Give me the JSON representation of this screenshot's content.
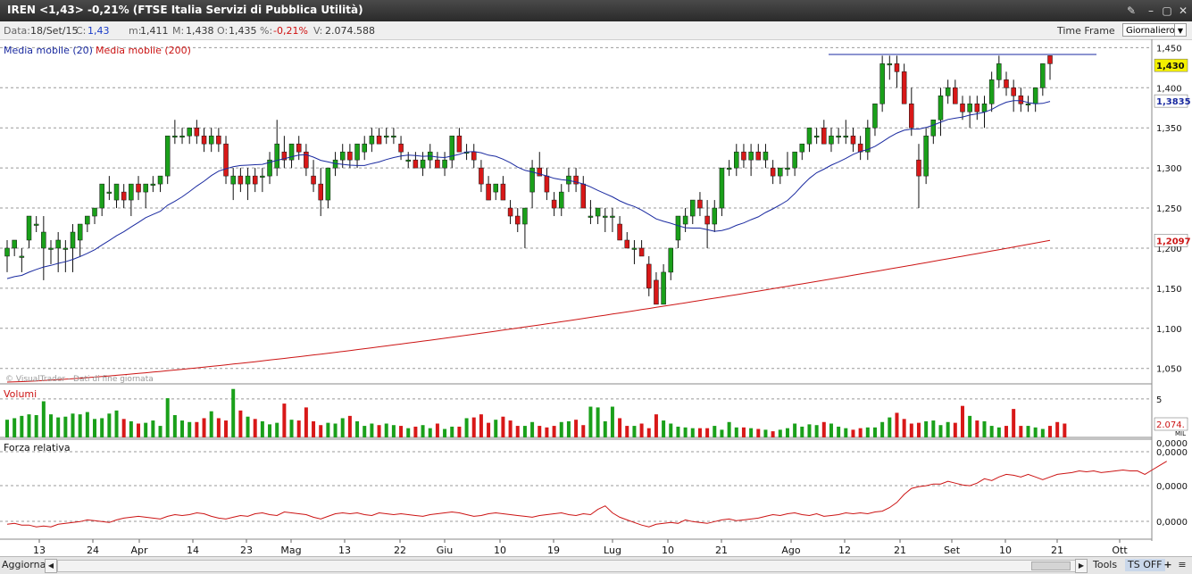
{
  "window": {
    "title": "IREN <1,43> -0,21%  (FTSE Italia Servizi di Pubblica Utilità)",
    "controls": [
      "✎",
      "–",
      "▢",
      "✕"
    ]
  },
  "infobar": {
    "data_label": "Data:",
    "date": "18/Set/15",
    "c_label": "C:",
    "c_value": "1,43",
    "m_label": "m:",
    "m_value": "1,411",
    "M_label": "M:",
    "M_value": "1,438",
    "o_label": "O:",
    "o_value": "1,435",
    "pct_label": "%:",
    "pct_value": "-0,21%",
    "v_label": "V:",
    "v_value": "2.074.588",
    "timeframe_label": "Time Frame",
    "timeframe_value": "Giornaliero"
  },
  "colors": {
    "up": "#1aa01a",
    "down": "#d81818",
    "ma20": "#1a2aa0",
    "ma200": "#cc1414",
    "rsi": "#cc1414",
    "grid": "#999999"
  },
  "chart_data": {
    "type": "candlestick",
    "legend": [
      "Media mobile (20)",
      "Media mobile (200)"
    ],
    "watermark": "© VisualTrader - Dati di fine giornata",
    "price_axis": {
      "ticks": [
        "1,450",
        "1,400",
        "1,350",
        "1,300",
        "1,250",
        "1,200",
        "1,150",
        "1,100",
        "1,050"
      ],
      "ylim": [
        1.033,
        1.456
      ]
    },
    "markers": {
      "last": "1,430",
      "ma20": "1,3835",
      "ma200": "1,2097"
    },
    "x_labels": [
      "13",
      "24",
      "Apr",
      "14",
      "23",
      "Mag",
      "13",
      "22",
      "Giu",
      "10",
      "19",
      "Lug",
      "10",
      "21",
      "Ago",
      "12",
      "21",
      "Set",
      "10",
      "21",
      "Ott"
    ],
    "candles": [
      [
        1.19,
        1.21,
        1.17,
        1.2
      ],
      [
        1.2,
        1.21,
        1.19,
        1.21
      ],
      [
        1.19,
        1.2,
        1.17,
        1.19
      ],
      [
        1.21,
        1.24,
        1.2,
        1.24
      ],
      [
        1.23,
        1.24,
        1.22,
        1.23
      ],
      [
        1.2,
        1.24,
        1.16,
        1.22
      ],
      [
        1.2,
        1.21,
        1.18,
        1.2
      ],
      [
        1.2,
        1.22,
        1.17,
        1.21
      ],
      [
        1.2,
        1.21,
        1.17,
        1.2
      ],
      [
        1.2,
        1.23,
        1.17,
        1.22
      ],
      [
        1.21,
        1.23,
        1.19,
        1.23
      ],
      [
        1.23,
        1.24,
        1.22,
        1.24
      ],
      [
        1.24,
        1.25,
        1.23,
        1.25
      ],
      [
        1.25,
        1.28,
        1.24,
        1.28
      ],
      [
        1.27,
        1.29,
        1.26,
        1.27
      ],
      [
        1.26,
        1.28,
        1.25,
        1.28
      ],
      [
        1.27,
        1.28,
        1.25,
        1.26
      ],
      [
        1.26,
        1.28,
        1.24,
        1.28
      ],
      [
        1.28,
        1.29,
        1.26,
        1.27
      ],
      [
        1.27,
        1.28,
        1.25,
        1.28
      ],
      [
        1.28,
        1.29,
        1.27,
        1.28
      ],
      [
        1.28,
        1.29,
        1.27,
        1.29
      ],
      [
        1.29,
        1.34,
        1.28,
        1.34
      ],
      [
        1.34,
        1.36,
        1.33,
        1.34
      ],
      [
        1.34,
        1.35,
        1.33,
        1.34
      ],
      [
        1.34,
        1.35,
        1.33,
        1.35
      ],
      [
        1.35,
        1.36,
        1.33,
        1.34
      ],
      [
        1.34,
        1.35,
        1.32,
        1.33
      ],
      [
        1.33,
        1.35,
        1.32,
        1.34
      ],
      [
        1.34,
        1.35,
        1.32,
        1.33
      ],
      [
        1.33,
        1.34,
        1.28,
        1.29
      ],
      [
        1.28,
        1.3,
        1.26,
        1.29
      ],
      [
        1.29,
        1.3,
        1.27,
        1.28
      ],
      [
        1.28,
        1.3,
        1.26,
        1.29
      ],
      [
        1.29,
        1.3,
        1.27,
        1.28
      ],
      [
        1.29,
        1.3,
        1.27,
        1.29
      ],
      [
        1.29,
        1.32,
        1.28,
        1.31
      ],
      [
        1.3,
        1.36,
        1.29,
        1.33
      ],
      [
        1.32,
        1.34,
        1.3,
        1.31
      ],
      [
        1.31,
        1.33,
        1.3,
        1.33
      ],
      [
        1.33,
        1.34,
        1.31,
        1.32
      ],
      [
        1.32,
        1.33,
        1.29,
        1.3
      ],
      [
        1.29,
        1.31,
        1.27,
        1.28
      ],
      [
        1.28,
        1.3,
        1.24,
        1.26
      ],
      [
        1.26,
        1.3,
        1.25,
        1.3
      ],
      [
        1.3,
        1.32,
        1.29,
        1.31
      ],
      [
        1.31,
        1.33,
        1.3,
        1.32
      ],
      [
        1.32,
        1.33,
        1.3,
        1.31
      ],
      [
        1.31,
        1.33,
        1.3,
        1.33
      ],
      [
        1.32,
        1.34,
        1.31,
        1.33
      ],
      [
        1.33,
        1.35,
        1.32,
        1.34
      ],
      [
        1.34,
        1.35,
        1.33,
        1.33
      ],
      [
        1.34,
        1.35,
        1.33,
        1.34
      ],
      [
        1.34,
        1.35,
        1.33,
        1.34
      ],
      [
        1.33,
        1.34,
        1.31,
        1.32
      ],
      [
        1.31,
        1.32,
        1.3,
        1.31
      ],
      [
        1.31,
        1.32,
        1.3,
        1.3
      ],
      [
        1.3,
        1.32,
        1.29,
        1.31
      ],
      [
        1.31,
        1.33,
        1.3,
        1.32
      ],
      [
        1.31,
        1.32,
        1.3,
        1.3
      ],
      [
        1.3,
        1.32,
        1.29,
        1.31
      ],
      [
        1.31,
        1.34,
        1.3,
        1.34
      ],
      [
        1.34,
        1.35,
        1.32,
        1.32
      ],
      [
        1.32,
        1.33,
        1.31,
        1.32
      ],
      [
        1.32,
        1.33,
        1.3,
        1.31
      ],
      [
        1.3,
        1.31,
        1.27,
        1.28
      ],
      [
        1.28,
        1.29,
        1.26,
        1.26
      ],
      [
        1.27,
        1.28,
        1.26,
        1.28
      ],
      [
        1.28,
        1.29,
        1.26,
        1.26
      ],
      [
        1.25,
        1.26,
        1.23,
        1.24
      ],
      [
        1.24,
        1.25,
        1.22,
        1.23
      ],
      [
        1.23,
        1.25,
        1.2,
        1.25
      ],
      [
        1.27,
        1.31,
        1.25,
        1.3
      ],
      [
        1.3,
        1.32,
        1.29,
        1.29
      ],
      [
        1.29,
        1.3,
        1.26,
        1.27
      ],
      [
        1.26,
        1.27,
        1.24,
        1.25
      ],
      [
        1.25,
        1.28,
        1.24,
        1.27
      ],
      [
        1.28,
        1.3,
        1.27,
        1.29
      ],
      [
        1.29,
        1.3,
        1.27,
        1.28
      ],
      [
        1.28,
        1.29,
        1.25,
        1.25
      ],
      [
        1.24,
        1.26,
        1.23,
        1.24
      ],
      [
        1.24,
        1.25,
        1.23,
        1.25
      ],
      [
        1.24,
        1.25,
        1.22,
        1.24
      ],
      [
        1.24,
        1.25,
        1.22,
        1.24
      ],
      [
        1.23,
        1.24,
        1.21,
        1.21
      ],
      [
        1.21,
        1.22,
        1.2,
        1.2
      ],
      [
        1.2,
        1.21,
        1.18,
        1.2
      ],
      [
        1.2,
        1.21,
        1.19,
        1.19
      ],
      [
        1.18,
        1.19,
        1.14,
        1.15
      ],
      [
        1.16,
        1.17,
        1.13,
        1.13
      ],
      [
        1.13,
        1.18,
        1.13,
        1.17
      ],
      [
        1.17,
        1.2,
        1.16,
        1.2
      ],
      [
        1.21,
        1.24,
        1.2,
        1.24
      ],
      [
        1.23,
        1.25,
        1.22,
        1.24
      ],
      [
        1.24,
        1.26,
        1.23,
        1.26
      ],
      [
        1.26,
        1.27,
        1.24,
        1.25
      ],
      [
        1.24,
        1.26,
        1.2,
        1.23
      ],
      [
        1.23,
        1.26,
        1.22,
        1.25
      ],
      [
        1.25,
        1.3,
        1.24,
        1.3
      ],
      [
        1.3,
        1.31,
        1.29,
        1.3
      ],
      [
        1.3,
        1.33,
        1.29,
        1.32
      ],
      [
        1.32,
        1.33,
        1.3,
        1.31
      ],
      [
        1.31,
        1.33,
        1.29,
        1.32
      ],
      [
        1.32,
        1.33,
        1.31,
        1.31
      ],
      [
        1.31,
        1.33,
        1.3,
        1.32
      ],
      [
        1.3,
        1.31,
        1.28,
        1.29
      ],
      [
        1.29,
        1.3,
        1.28,
        1.3
      ],
      [
        1.3,
        1.32,
        1.29,
        1.3
      ],
      [
        1.3,
        1.32,
        1.29,
        1.32
      ],
      [
        1.32,
        1.33,
        1.31,
        1.33
      ],
      [
        1.33,
        1.35,
        1.32,
        1.35
      ],
      [
        1.34,
        1.35,
        1.33,
        1.34
      ],
      [
        1.35,
        1.36,
        1.33,
        1.33
      ],
      [
        1.33,
        1.35,
        1.32,
        1.34
      ],
      [
        1.34,
        1.35,
        1.33,
        1.34
      ],
      [
        1.34,
        1.36,
        1.33,
        1.34
      ],
      [
        1.34,
        1.35,
        1.32,
        1.33
      ],
      [
        1.33,
        1.34,
        1.31,
        1.32
      ],
      [
        1.32,
        1.36,
        1.31,
        1.35
      ],
      [
        1.35,
        1.38,
        1.34,
        1.38
      ],
      [
        1.38,
        1.44,
        1.37,
        1.43
      ],
      [
        1.43,
        1.44,
        1.41,
        1.43
      ],
      [
        1.43,
        1.44,
        1.4,
        1.42
      ],
      [
        1.42,
        1.43,
        1.38,
        1.38
      ],
      [
        1.38,
        1.4,
        1.34,
        1.35
      ],
      [
        1.31,
        1.33,
        1.25,
        1.29
      ],
      [
        1.29,
        1.35,
        1.28,
        1.34
      ],
      [
        1.34,
        1.36,
        1.33,
        1.36
      ],
      [
        1.36,
        1.4,
        1.34,
        1.39
      ],
      [
        1.39,
        1.41,
        1.38,
        1.4
      ],
      [
        1.4,
        1.41,
        1.38,
        1.38
      ],
      [
        1.38,
        1.39,
        1.36,
        1.37
      ],
      [
        1.37,
        1.39,
        1.35,
        1.38
      ],
      [
        1.38,
        1.39,
        1.36,
        1.37
      ],
      [
        1.37,
        1.39,
        1.35,
        1.38
      ],
      [
        1.38,
        1.42,
        1.37,
        1.41
      ],
      [
        1.41,
        1.44,
        1.4,
        1.43
      ],
      [
        1.41,
        1.42,
        1.39,
        1.4
      ],
      [
        1.4,
        1.41,
        1.37,
        1.39
      ],
      [
        1.39,
        1.4,
        1.37,
        1.38
      ],
      [
        1.38,
        1.39,
        1.37,
        1.38
      ],
      [
        1.38,
        1.4,
        1.37,
        1.4
      ],
      [
        1.4,
        1.43,
        1.39,
        1.43
      ],
      [
        1.44,
        1.44,
        1.41,
        1.43
      ]
    ],
    "ma20_start": 1.16,
    "ma200_start": 1.033,
    "ma200_end": 1.2097,
    "resistance_level": 1.4415,
    "volume": {
      "label": "Volumi",
      "tick": "5",
      "last_value": "2.074.",
      "unit": "MIL",
      "ymax": 6.5,
      "values": [
        2.3,
        2.5,
        2.8,
        3.0,
        2.9,
        4.7,
        3.0,
        2.6,
        2.7,
        3.1,
        3.0,
        3.3,
        2.4,
        2.5,
        3.1,
        3.5,
        2.4,
        2.1,
        1.8,
        1.9,
        2.2,
        1.5,
        5.1,
        2.9,
        2.2,
        2.0,
        2.0,
        2.5,
        3.4,
        2.5,
        2.2,
        6.3,
        3.5,
        2.7,
        2.4,
        2.1,
        1.7,
        1.9,
        4.4,
        2.3,
        2.2,
        3.9,
        2.1,
        1.6,
        1.9,
        1.8,
        2.5,
        2.8,
        2.1,
        1.5,
        1.8,
        1.6,
        1.8,
        1.6,
        1.5,
        1.2,
        1.4,
        1.6,
        1.2,
        1.8,
        1.1,
        1.4,
        1.4,
        2.5,
        2.6,
        3.0,
        1.9,
        2.3,
        2.7,
        2.2,
        1.5,
        1.5,
        2.0,
        1.5,
        1.3,
        1.5,
        2.0,
        2.1,
        2.3,
        1.6,
        4.0,
        3.9,
        2.1,
        4.0,
        2.5,
        1.5,
        1.5,
        1.8,
        1.2,
        3.0,
        2.2,
        1.8,
        1.4,
        1.3,
        1.2,
        1.2,
        1.2,
        1.5,
        1.0,
        2.0,
        1.3,
        1.3,
        1.2,
        1.1,
        1.0,
        0.8,
        1.0,
        1.2,
        1.8,
        1.4,
        1.7,
        1.6,
        2.0,
        1.8,
        1.4,
        1.2,
        1.0,
        1.2,
        1.3,
        1.3,
        2.0,
        2.6,
        3.2,
        2.4,
        1.8,
        1.9,
        2.1,
        2.2,
        1.6,
        2.0,
        1.9,
        4.1,
        2.8,
        2.2,
        2.1,
        1.5,
        1.3,
        1.5,
        3.7,
        1.5,
        1.5,
        1.3,
        1.1,
        1.5,
        2.0,
        1.8
      ]
    },
    "rsi": {
      "label": "Forza relativa",
      "ticks": [
        "0,0000",
        "0,0000",
        "0,0000",
        "0,0000"
      ],
      "values": [
        0.13,
        0.14,
        0.12,
        0.12,
        0.1,
        0.11,
        0.1,
        0.13,
        0.14,
        0.15,
        0.16,
        0.18,
        0.17,
        0.16,
        0.15,
        0.18,
        0.2,
        0.21,
        0.22,
        0.21,
        0.2,
        0.19,
        0.22,
        0.24,
        0.23,
        0.24,
        0.26,
        0.25,
        0.22,
        0.2,
        0.19,
        0.21,
        0.23,
        0.22,
        0.25,
        0.26,
        0.24,
        0.23,
        0.27,
        0.26,
        0.25,
        0.24,
        0.21,
        0.19,
        0.22,
        0.25,
        0.26,
        0.25,
        0.26,
        0.24,
        0.23,
        0.26,
        0.25,
        0.24,
        0.25,
        0.24,
        0.23,
        0.22,
        0.24,
        0.25,
        0.26,
        0.27,
        0.26,
        0.24,
        0.22,
        0.23,
        0.25,
        0.26,
        0.25,
        0.24,
        0.23,
        0.22,
        0.21,
        0.23,
        0.24,
        0.25,
        0.26,
        0.24,
        0.23,
        0.25,
        0.24,
        0.3,
        0.34,
        0.26,
        0.21,
        0.18,
        0.15,
        0.12,
        0.1,
        0.13,
        0.14,
        0.15,
        0.14,
        0.18,
        0.16,
        0.15,
        0.14,
        0.16,
        0.18,
        0.19,
        0.17,
        0.18,
        0.19,
        0.2,
        0.22,
        0.24,
        0.23,
        0.25,
        0.26,
        0.24,
        0.23,
        0.25,
        0.22,
        0.23,
        0.24,
        0.26,
        0.25,
        0.26,
        0.25,
        0.27,
        0.28,
        0.32,
        0.38,
        0.47,
        0.54,
        0.56,
        0.57,
        0.59,
        0.59,
        0.62,
        0.6,
        0.58,
        0.57,
        0.6,
        0.65,
        0.63,
        0.67,
        0.7,
        0.69,
        0.67,
        0.7,
        0.67,
        0.64,
        0.67,
        0.7,
        0.71,
        0.72,
        0.74,
        0.73,
        0.74,
        0.72,
        0.73,
        0.74,
        0.75,
        0.74,
        0.74,
        0.7,
        0.75,
        0.8,
        0.85
      ]
    }
  },
  "bottombar": {
    "aggiorna": "Aggiorna",
    "tools": "Tools",
    "ts_off": "TS OFF",
    "plus": "+",
    "menu": "≡"
  }
}
